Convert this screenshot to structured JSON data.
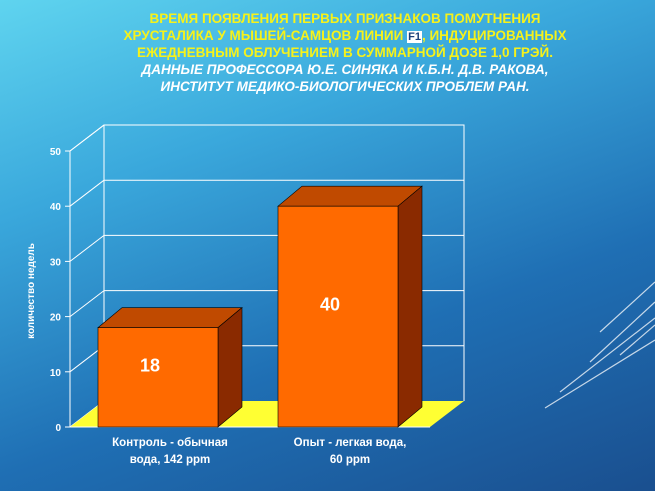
{
  "title": {
    "line1": "ВРЕМЯ  ПОЯВЛЕНИЯ  ПЕРВЫХ  ПРИЗНАКОВ  ПОМУТНЕНИЯ",
    "line2a": "ХРУСТАЛИКА  У МЫШЕЙ-САМЦОВ  ЛИНИИ ",
    "line2box": "F1",
    "line2b": ", ИНДУЦИРОВАННЫХ",
    "line3": "ЕЖЕДНЕВНЫМ  ОБЛУЧЕНИЕМ  В СУММАРНОЙ  ДОЗЕ 1,0 ГРЭЙ.",
    "line4": "ДАННЫЕ ПРОФЕССОРА Ю.Е. СИНЯКА И К.Б.Н. Д.В. РАКОВА,",
    "line5": "ИНСТИТУТ МЕДИКО-БИОЛОГИЧЕСКИХ ПРОБЛЕМ РАН."
  },
  "colors": {
    "bar_front": "#ff6a00",
    "bar_top": "#c04a00",
    "bar_side": "#8a2a00",
    "floor": "#ffff33",
    "grid": "#ffffff",
    "text": "#ffffff"
  },
  "chart_data": {
    "type": "bar",
    "categories": [
      "Контроль - обычная вода, 142 ppm",
      "Опыт - легкая вода, 60 ppm"
    ],
    "category_lines": [
      [
        "Контроль - обычная",
        "вода, 142 ppm"
      ],
      [
        "Опыт - легкая вода,",
        "60 ppm"
      ]
    ],
    "values": [
      18,
      40
    ],
    "data_labels": [
      "18",
      "40"
    ],
    "ylabel": "количество недель",
    "ylim": [
      0,
      50
    ],
    "yticks": [
      "0",
      "10",
      "20",
      "30",
      "40",
      "50"
    ],
    "grid": true,
    "three_d": true
  }
}
